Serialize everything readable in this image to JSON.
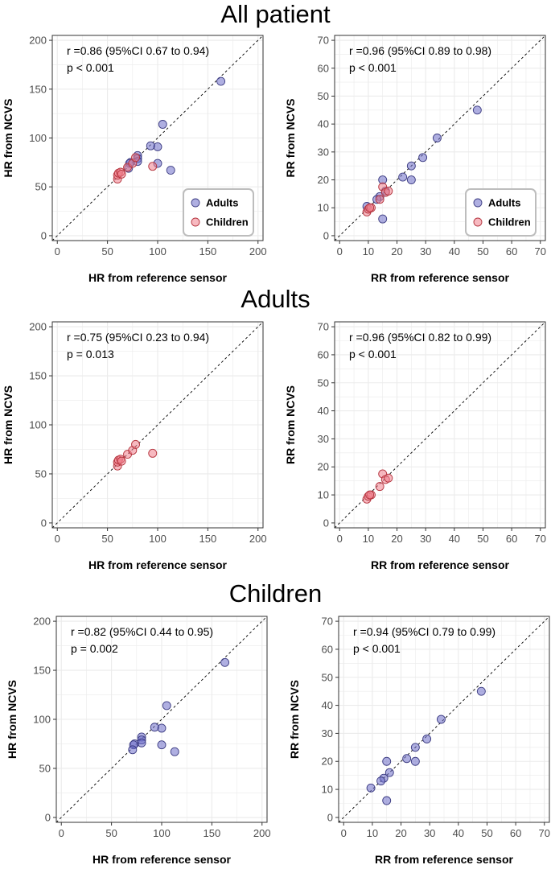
{
  "sections": [
    {
      "title": "All patient"
    },
    {
      "title": "Adults"
    },
    {
      "title": "Children"
    }
  ],
  "legend": {
    "items": [
      {
        "label": "Adults",
        "color": "#6e6ec8"
      },
      {
        "label": "Children",
        "color": "#f0808c"
      }
    ]
  },
  "colors": {
    "adults": "#6e6ec8",
    "children": "#f0808c",
    "grid": "#ebebeb",
    "reference_line": "#000000"
  },
  "chart_data": [
    {
      "type": "scatter",
      "section": "All patient",
      "xlabel": "HR from reference sensor",
      "ylabel": "HR from NCVS",
      "xlim": [
        -5,
        205
      ],
      "ylim": [
        -5,
        205
      ],
      "xticks": [
        0,
        50,
        100,
        150,
        200
      ],
      "yticks": [
        0,
        50,
        100,
        150,
        200
      ],
      "annotation": [
        "r =0.86 (95%CI 0.67 to 0.94)",
        "p < 0.001"
      ],
      "identity_line": true,
      "grid": true,
      "legend": "bottom-right",
      "series": [
        {
          "name": "Adults",
          "group": "adults",
          "points": [
            [
              163,
              158
            ],
            [
              105,
              114
            ],
            [
              100,
              91
            ],
            [
              113,
              67
            ],
            [
              93,
              92
            ],
            [
              100,
              74
            ],
            [
              80,
              82
            ],
            [
              80,
              79
            ],
            [
              80,
              76
            ],
            [
              73,
              75
            ],
            [
              72,
              74
            ],
            [
              71,
              69
            ]
          ]
        },
        {
          "name": "Children",
          "group": "children",
          "points": [
            [
              60,
              58
            ],
            [
              60,
              62
            ],
            [
              61,
              64
            ],
            [
              63,
              65
            ],
            [
              70,
              70
            ],
            [
              75,
              74
            ],
            [
              78,
              80
            ],
            [
              95,
              71
            ],
            [
              64,
              63
            ]
          ]
        }
      ]
    },
    {
      "type": "scatter",
      "section": "All patient",
      "xlabel": "RR from reference sensor",
      "ylabel": "RR from NCVS",
      "xlim": [
        -1.75,
        71.75
      ],
      "ylim": [
        -1.75,
        71.75
      ],
      "xticks": [
        0,
        10,
        20,
        30,
        40,
        50,
        60,
        70
      ],
      "yticks": [
        0,
        10,
        20,
        30,
        40,
        50,
        60,
        70
      ],
      "annotation": [
        "r =0.96 (95%CI 0.89 to 0.98)",
        "p < 0.001"
      ],
      "identity_line": true,
      "grid": true,
      "legend": "bottom-right",
      "series": [
        {
          "name": "Adults",
          "group": "adults",
          "points": [
            [
              48,
              45
            ],
            [
              34,
              35
            ],
            [
              29,
              28
            ],
            [
              25,
              25
            ],
            [
              22,
              21
            ],
            [
              25,
              20
            ],
            [
              15,
              20
            ],
            [
              16,
              16
            ],
            [
              14,
              14
            ],
            [
              15,
              6
            ],
            [
              9.5,
              10.5
            ],
            [
              13,
              13
            ]
          ]
        },
        {
          "name": "Children",
          "group": "children",
          "points": [
            [
              9.5,
              8.5
            ],
            [
              10,
              9.5
            ],
            [
              11,
              10
            ],
            [
              15,
              17.5
            ],
            [
              16,
              15.5
            ],
            [
              17,
              16
            ],
            [
              14,
              13
            ],
            [
              10.5,
              10
            ]
          ]
        }
      ]
    },
    {
      "type": "scatter",
      "section": "Adults",
      "xlabel": "HR from reference sensor",
      "ylabel": "HR from NCVS",
      "xlim": [
        -5,
        205
      ],
      "ylim": [
        -5,
        205
      ],
      "xticks": [
        0,
        50,
        100,
        150,
        200
      ],
      "yticks": [
        0,
        50,
        100,
        150,
        200
      ],
      "annotation": [
        "r =0.75 (95%CI 0.23 to 0.94)",
        "p = 0.013"
      ],
      "identity_line": true,
      "grid": true,
      "series": [
        {
          "group": "children",
          "points": [
            [
              60,
              58
            ],
            [
              60,
              62
            ],
            [
              61,
              64
            ],
            [
              63,
              65
            ],
            [
              70,
              70
            ],
            [
              75,
              74
            ],
            [
              78,
              80
            ],
            [
              95,
              71
            ],
            [
              64,
              63
            ]
          ]
        }
      ]
    },
    {
      "type": "scatter",
      "section": "Adults",
      "xlabel": "RR from reference sensor",
      "ylabel": "RR from NCVS",
      "xlim": [
        -1.75,
        71.75
      ],
      "ylim": [
        -1.75,
        71.75
      ],
      "xticks": [
        0,
        10,
        20,
        30,
        40,
        50,
        60,
        70
      ],
      "yticks": [
        0,
        10,
        20,
        30,
        40,
        50,
        60,
        70
      ],
      "annotation": [
        "r =0.96 (95%CI 0.82 to 0.99)",
        "p < 0.001"
      ],
      "identity_line": true,
      "grid": true,
      "series": [
        {
          "group": "children",
          "points": [
            [
              9.5,
              8.5
            ],
            [
              10,
              9.5
            ],
            [
              11,
              10
            ],
            [
              15,
              17.5
            ],
            [
              16,
              15.5
            ],
            [
              17,
              16
            ],
            [
              14,
              13
            ],
            [
              10.5,
              10
            ]
          ]
        }
      ]
    },
    {
      "type": "scatter",
      "section": "Children",
      "xlabel": "HR from reference sensor",
      "ylabel": "HR from NCVS",
      "xlim": [
        -5,
        205
      ],
      "ylim": [
        -5,
        205
      ],
      "xticks": [
        0,
        50,
        100,
        150,
        200
      ],
      "yticks": [
        0,
        50,
        100,
        150,
        200
      ],
      "annotation": [
        "r =0.82 (95%CI 0.44 to 0.95)",
        "p = 0.002"
      ],
      "identity_line": true,
      "grid": true,
      "series": [
        {
          "group": "adults",
          "points": [
            [
              163,
              158
            ],
            [
              105,
              114
            ],
            [
              100,
              91
            ],
            [
              113,
              67
            ],
            [
              93,
              92
            ],
            [
              100,
              74
            ],
            [
              80,
              82
            ],
            [
              80,
              79
            ],
            [
              80,
              76
            ],
            [
              73,
              75
            ],
            [
              72,
              74
            ],
            [
              71,
              69
            ]
          ]
        }
      ]
    },
    {
      "type": "scatter",
      "section": "Children",
      "xlabel": "RR from reference sensor",
      "ylabel": "RR from NCVS",
      "xlim": [
        -1.75,
        71.75
      ],
      "ylim": [
        -1.75,
        71.75
      ],
      "xticks": [
        0,
        10,
        20,
        30,
        40,
        50,
        60,
        70
      ],
      "yticks": [
        0,
        10,
        20,
        30,
        40,
        50,
        60,
        70
      ],
      "annotation": [
        "r =0.94 (95%CI 0.79 to 0.99)",
        "p < 0.001"
      ],
      "identity_line": true,
      "grid": true,
      "series": [
        {
          "group": "adults",
          "points": [
            [
              48,
              45
            ],
            [
              34,
              35
            ],
            [
              29,
              28
            ],
            [
              25,
              25
            ],
            [
              22,
              21
            ],
            [
              25,
              20
            ],
            [
              15,
              20
            ],
            [
              16,
              16
            ],
            [
              14,
              14
            ],
            [
              15,
              6
            ],
            [
              9.5,
              10.5
            ],
            [
              13,
              13
            ]
          ]
        }
      ]
    }
  ]
}
